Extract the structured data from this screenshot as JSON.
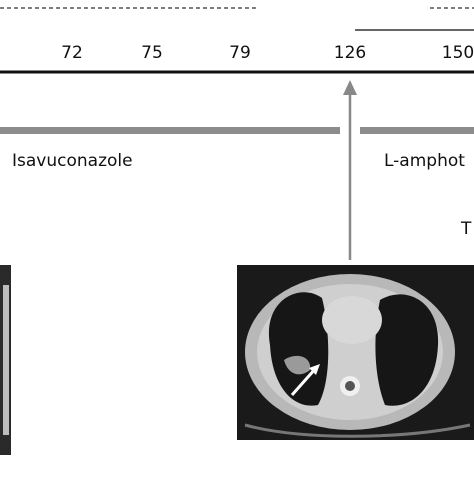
{
  "timeline": {
    "days": [
      "72",
      "75",
      "79",
      "126",
      "150"
    ]
  },
  "treatments": [
    "Isavuconazole",
    "L-amphot"
  ],
  "side_label": "T"
}
